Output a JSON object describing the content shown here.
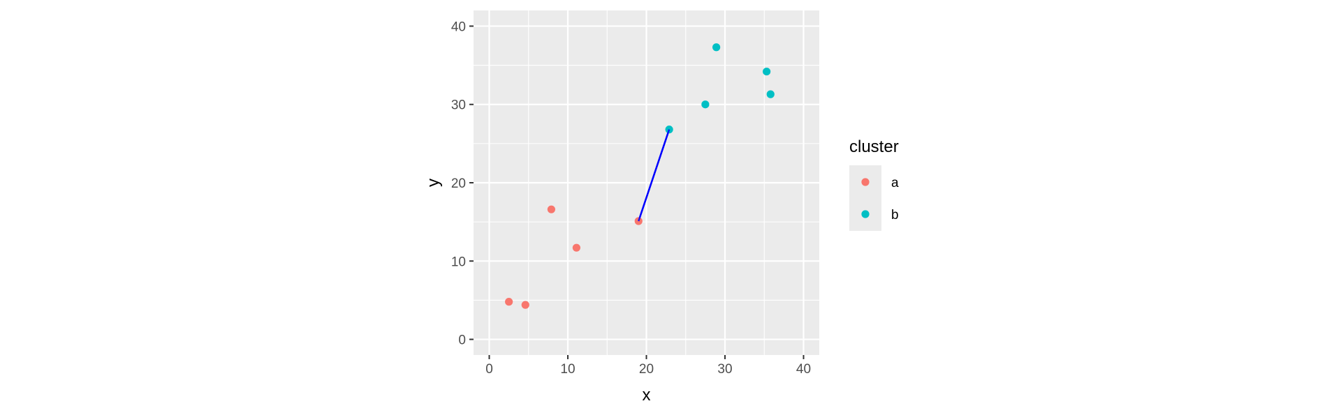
{
  "chart_data": {
    "type": "scatter",
    "xlabel": "x",
    "ylabel": "y",
    "xlim": [
      -2,
      42
    ],
    "ylim": [
      -2,
      42
    ],
    "x_ticks": [
      0,
      10,
      20,
      30,
      40
    ],
    "y_ticks": [
      0,
      10,
      20,
      30,
      40
    ],
    "x_tick_labels": [
      "0",
      "10",
      "20",
      "30",
      "40"
    ],
    "y_tick_labels": [
      "0",
      "10",
      "20",
      "30",
      "40"
    ],
    "grid": true,
    "panel_background": "#ebebeb",
    "grid_color": "#ffffff",
    "legend": {
      "title": "cluster",
      "position": "right",
      "items": [
        {
          "label": "a",
          "color": "#f8766d"
        },
        {
          "label": "b",
          "color": "#00bfc4"
        }
      ]
    },
    "series": [
      {
        "name": "a",
        "color": "#f8766d",
        "points": [
          {
            "x": 2.5,
            "y": 4.8
          },
          {
            "x": 4.6,
            "y": 4.4
          },
          {
            "x": 7.9,
            "y": 16.6
          },
          {
            "x": 11.1,
            "y": 11.7
          },
          {
            "x": 19.0,
            "y": 15.1
          }
        ]
      },
      {
        "name": "b",
        "color": "#00bfc4",
        "points": [
          {
            "x": 22.9,
            "y": 26.8
          },
          {
            "x": 27.5,
            "y": 30.0
          },
          {
            "x": 28.9,
            "y": 37.3
          },
          {
            "x": 35.3,
            "y": 34.2
          },
          {
            "x": 35.8,
            "y": 31.3
          }
        ]
      }
    ],
    "segments": [
      {
        "x1": 19.0,
        "y1": 15.1,
        "x2": 22.9,
        "y2": 26.8,
        "color": "#0000ff"
      }
    ]
  }
}
